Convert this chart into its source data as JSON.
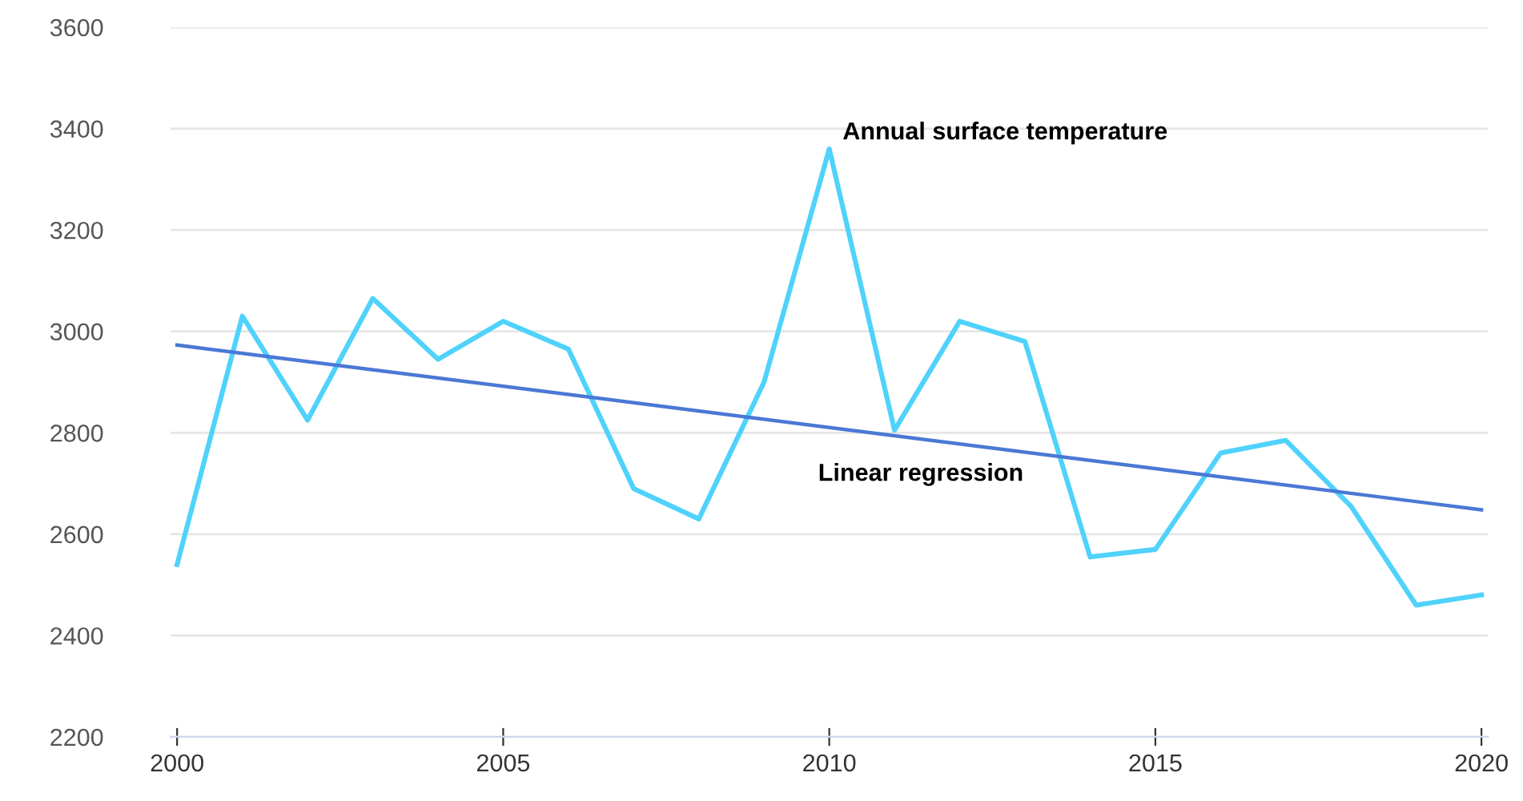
{
  "chart_data": {
    "type": "line",
    "x": [
      2000,
      2001,
      2002,
      2003,
      2004,
      2005,
      2006,
      2007,
      2008,
      2009,
      2010,
      2011,
      2012,
      2013,
      2014,
      2015,
      2016,
      2017,
      2018,
      2019,
      2020
    ],
    "series": [
      {
        "name": "Annual surface temperature",
        "color": "#4fd2fb",
        "values": [
          2540,
          3030,
          2825,
          3065,
          2945,
          3020,
          2965,
          2690,
          2630,
          2900,
          3360,
          2805,
          3020,
          2980,
          2555,
          2570,
          2760,
          2785,
          2655,
          2460,
          2480
        ]
      },
      {
        "name": "Linear regression",
        "color": "#4a78d4",
        "x": [
          2000,
          2020
        ],
        "values": [
          2973,
          2648
        ]
      }
    ],
    "xlim": [
      1999.9,
      2020.1
    ],
    "ylim": [
      2200,
      3600
    ],
    "xticks": [
      2000,
      2005,
      2010,
      2015,
      2020
    ],
    "yticks": [
      2200,
      2400,
      2600,
      2800,
      3000,
      3200,
      3400,
      3600
    ],
    "grid": "y",
    "legend": false
  }
}
